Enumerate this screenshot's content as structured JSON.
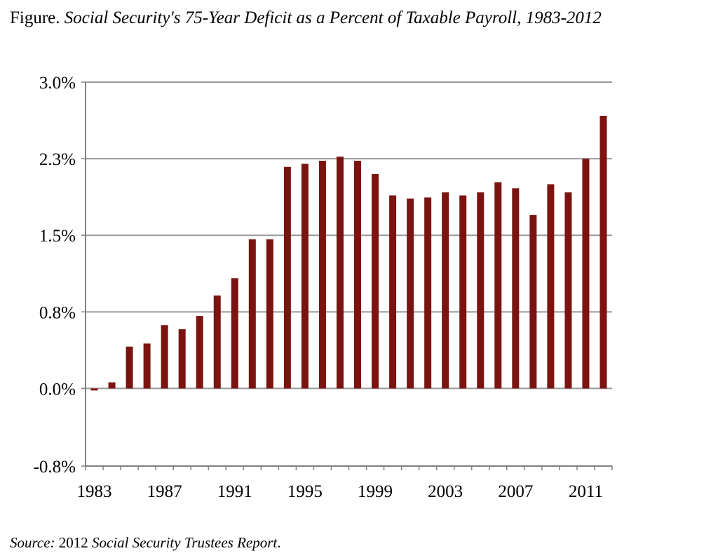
{
  "figure_label": "Figure.",
  "source_label": "Source:",
  "source_year": "2012",
  "source_title": "Social Security Trustees Report",
  "source_end": ".",
  "colors": {
    "bar": "#7b1410",
    "grid": "#999999",
    "axis": "#808080"
  },
  "chart_data": {
    "type": "bar",
    "title": "Social Security's 75-Year Deficit as a Percent of Taxable Payroll, 1983-2012",
    "xlabel": "",
    "ylabel": "",
    "ylim": [
      -0.76,
      3.0
    ],
    "yticks": [
      3.0,
      2.25,
      1.5,
      0.75,
      0.0,
      -0.76
    ],
    "ytick_labels": [
      "3.0%",
      "2.3%",
      "1.5%",
      "0.8%",
      "0.0%",
      "-0.8%"
    ],
    "xtick_labels": [
      "1983",
      "1987",
      "1991",
      "1995",
      "1999",
      "2003",
      "2007",
      "2011"
    ],
    "grid": true,
    "legend": "none",
    "categories": [
      "1983",
      "1984",
      "1985",
      "1986",
      "1987",
      "1988",
      "1989",
      "1990",
      "1991",
      "1992",
      "1993",
      "1994",
      "1995",
      "1996",
      "1997",
      "1998",
      "1999",
      "2000",
      "2001",
      "2002",
      "2003",
      "2004",
      "2005",
      "2006",
      "2007",
      "2008",
      "2009",
      "2010",
      "2011",
      "2012"
    ],
    "values": [
      -0.02,
      0.06,
      0.41,
      0.44,
      0.62,
      0.58,
      0.71,
      0.91,
      1.08,
      1.46,
      1.46,
      2.17,
      2.2,
      2.23,
      2.27,
      2.23,
      2.1,
      1.89,
      1.86,
      1.87,
      1.92,
      1.89,
      1.92,
      2.02,
      1.96,
      1.7,
      2.0,
      1.92,
      2.25,
      2.67
    ]
  }
}
